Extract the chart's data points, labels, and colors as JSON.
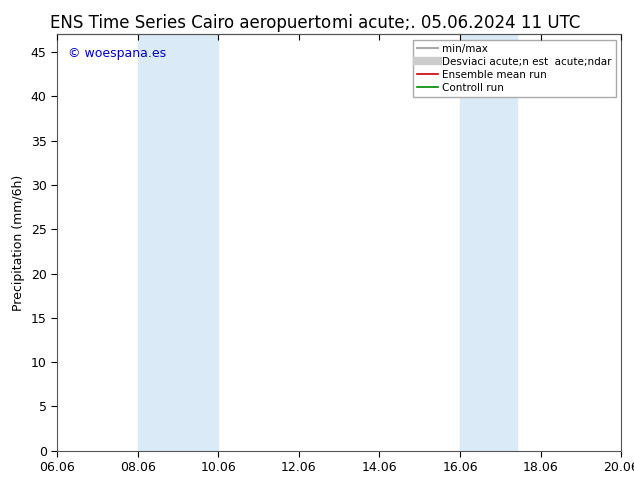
{
  "title_left": "ENS Time Series Cairo aeropuerto",
  "title_right": "mi acute;. 05.06.2024 11 UTC",
  "ylabel": "Precipitation (mm/6h)",
  "ylim": [
    0,
    47
  ],
  "yticks": [
    0,
    5,
    10,
    15,
    20,
    25,
    30,
    35,
    40,
    45
  ],
  "xlim": [
    0,
    14
  ],
  "xtick_labels": [
    "06.06",
    "08.06",
    "10.06",
    "12.06",
    "14.06",
    "16.06",
    "18.06",
    "20.06"
  ],
  "xtick_positions": [
    0,
    2,
    4,
    6,
    8,
    10,
    12,
    14
  ],
  "shade_bands": [
    {
      "x_start": 2,
      "x_end": 4,
      "color": "#daeaf7"
    },
    {
      "x_start": 10,
      "x_end": 11.4,
      "color": "#daeaf7"
    }
  ],
  "watermark": "© woespana.es",
  "watermark_color": "#0000cc",
  "legend_entries": [
    {
      "label": "min/max",
      "color": "#aaaaaa",
      "lw": 1.5
    },
    {
      "label": "Desviaci acute;n est  acute;ndar",
      "color": "#cccccc",
      "lw": 6
    },
    {
      "label": "Ensemble mean run",
      "color": "#cc0000",
      "lw": 1.2
    },
    {
      "label": "Controll run",
      "color": "#008800",
      "lw": 1.2
    }
  ],
  "legend_label_inside": "Desviaci acute;n est  acute;ndar",
  "bg_color": "#ffffff",
  "plot_bg_color": "#ffffff",
  "border_color": "#555555",
  "title_fontsize": 12,
  "tick_fontsize": 9,
  "ylabel_fontsize": 9,
  "legend_fontsize": 7.5
}
